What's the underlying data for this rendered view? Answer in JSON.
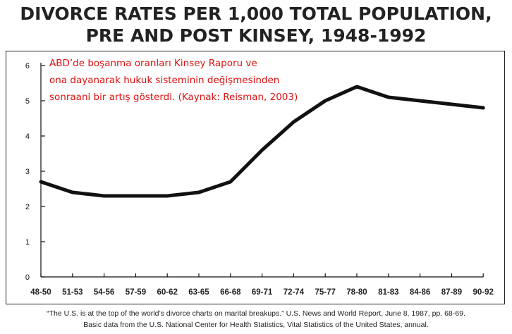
{
  "chart_data": {
    "type": "line",
    "title": [
      "DIVORCE RATES PER 1,000 TOTAL POPULATION,",
      "PRE AND POST KINSEY, 1948-1992"
    ],
    "categories": [
      "48-50",
      "51-53",
      "54-56",
      "57-59",
      "60-62",
      "63-65",
      "66-68",
      "69-71",
      "72-74",
      "75-77",
      "78-80",
      "81-83",
      "84-86",
      "87-89",
      "90-92"
    ],
    "series": [
      {
        "values": [
          2.7,
          2.4,
          2.3,
          2.3,
          2.3,
          2.4,
          2.7,
          3.6,
          4.4,
          5.0,
          5.4,
          5.1,
          5.0,
          4.9,
          4.8
        ]
      }
    ],
    "yticks": [
      0,
      1,
      2,
      3,
      4,
      5,
      6
    ],
    "ylim": [
      0,
      6.2
    ],
    "xlabel": "",
    "ylabel": "",
    "grid": false,
    "line_color": "#111111",
    "annotation": [
      "ABD’de boşanma oranları Kinsey Raporu ve",
      "ona dayanarak hukuk sisteminin değişmesinden",
      "sonraani bir artış gösterdi. (Kaynak: Reisman, 2003)"
    ],
    "annotation_color": "#e01010"
  },
  "footnote": [
    "“The U.S. is at the top of the world’s divorce charts on marital breakups.” U.S. News and World Report, June 8, 1987, pp. 68-69.",
    "Basic data from the U.S. National Center for Health Statistics, Vital Statistics of the United States, annual."
  ]
}
